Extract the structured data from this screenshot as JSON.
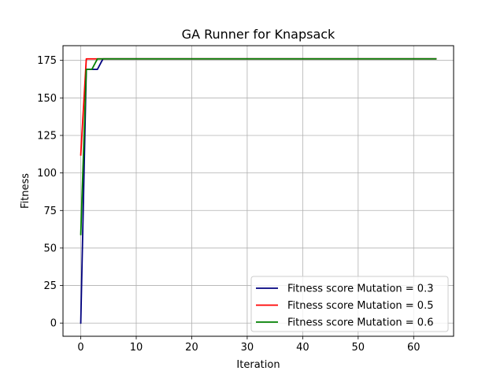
{
  "chart_data": {
    "type": "line",
    "title": "GA Runner for Knapsack",
    "xlabel": "Iteration",
    "ylabel": "Fitness",
    "xlim": [
      -3.2,
      67.2
    ],
    "ylim": [
      -8.8,
      184.8
    ],
    "xticks": [
      0,
      10,
      20,
      30,
      40,
      50,
      60
    ],
    "yticks": [
      0,
      25,
      50,
      75,
      100,
      125,
      150,
      175
    ],
    "grid": true,
    "legend_position": "lower-right",
    "series": [
      {
        "name": "Fitness score Mutation = 0.3",
        "color": "#00007f",
        "x": [
          0,
          1,
          2,
          3,
          4,
          64
        ],
        "y": [
          0,
          169,
          169,
          169,
          176,
          176
        ]
      },
      {
        "name": "Fitness score Mutation = 0.5",
        "color": "#ff0000",
        "x": [
          0,
          1,
          64
        ],
        "y": [
          112,
          176,
          176
        ]
      },
      {
        "name": "Fitness score Mutation = 0.6",
        "color": "#008000",
        "x": [
          0,
          1,
          2,
          3,
          64
        ],
        "y": [
          59,
          169,
          169,
          176,
          176
        ]
      }
    ]
  }
}
